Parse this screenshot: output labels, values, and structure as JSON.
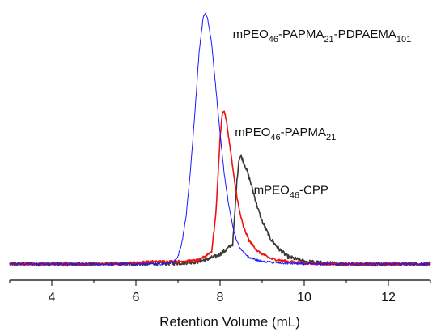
{
  "chart_data": {
    "type": "line",
    "xlabel": "Retention Volume (mL)",
    "ylabel": "",
    "xlim": [
      3,
      13
    ],
    "ylim": [
      0,
      1.02
    ],
    "x_ticks": [
      4,
      6,
      8,
      10,
      12
    ],
    "x_tick_labels": [
      "4",
      "6",
      "8",
      "10",
      "12"
    ],
    "y_axis_visible": false,
    "grid": false,
    "legend": "none",
    "series": [
      {
        "color": "#1a1aff",
        "noise": 0.004,
        "points": [
          [
            3.0,
            0.0
          ],
          [
            6.6,
            0.0
          ],
          [
            6.9,
            0.008
          ],
          [
            7.0,
            0.03
          ],
          [
            7.1,
            0.09
          ],
          [
            7.2,
            0.2
          ],
          [
            7.3,
            0.38
          ],
          [
            7.4,
            0.6
          ],
          [
            7.5,
            0.84
          ],
          [
            7.6,
            0.985
          ],
          [
            7.65,
            1.0
          ],
          [
            7.7,
            0.98
          ],
          [
            7.8,
            0.88
          ],
          [
            7.9,
            0.7
          ],
          [
            8.0,
            0.52
          ],
          [
            8.1,
            0.36
          ],
          [
            8.2,
            0.24
          ],
          [
            8.3,
            0.15
          ],
          [
            8.4,
            0.09
          ],
          [
            8.5,
            0.055
          ],
          [
            8.7,
            0.025
          ],
          [
            9.0,
            0.01
          ],
          [
            9.5,
            0.003
          ],
          [
            10.0,
            0.0
          ],
          [
            13.0,
            0.0
          ]
        ]
      },
      {
        "color": "#ee1111",
        "noise": 0.005,
        "points": [
          [
            3.0,
            0.0
          ],
          [
            5.5,
            0.0
          ],
          [
            6.0,
            0.006
          ],
          [
            6.5,
            0.01
          ],
          [
            7.0,
            0.01
          ],
          [
            7.5,
            0.015
          ],
          [
            7.8,
            0.05
          ],
          [
            7.9,
            0.2
          ],
          [
            8.0,
            0.5
          ],
          [
            8.05,
            0.6
          ],
          [
            8.1,
            0.61
          ],
          [
            8.15,
            0.57
          ],
          [
            8.25,
            0.45
          ],
          [
            8.35,
            0.32
          ],
          [
            8.45,
            0.22
          ],
          [
            8.55,
            0.15
          ],
          [
            8.7,
            0.09
          ],
          [
            8.9,
            0.05
          ],
          [
            9.2,
            0.022
          ],
          [
            9.6,
            0.01
          ],
          [
            10.0,
            0.004
          ],
          [
            10.5,
            0.0
          ],
          [
            13.0,
            0.0
          ]
        ]
      },
      {
        "color": "#3a3a3a",
        "noise": 0.008,
        "points": [
          [
            3.0,
            0.0
          ],
          [
            6.0,
            0.0
          ],
          [
            7.0,
            0.004
          ],
          [
            7.5,
            0.01
          ],
          [
            7.9,
            0.03
          ],
          [
            8.1,
            0.05
          ],
          [
            8.3,
            0.08
          ],
          [
            8.35,
            0.2
          ],
          [
            8.4,
            0.33
          ],
          [
            8.45,
            0.42
          ],
          [
            8.5,
            0.43
          ],
          [
            8.6,
            0.39
          ],
          [
            8.7,
            0.34
          ],
          [
            8.8,
            0.28
          ],
          [
            8.9,
            0.22
          ],
          [
            9.0,
            0.17
          ],
          [
            9.2,
            0.1
          ],
          [
            9.4,
            0.06
          ],
          [
            9.6,
            0.03
          ],
          [
            10.0,
            0.01
          ],
          [
            10.5,
            0.003
          ],
          [
            11.0,
            0.0
          ],
          [
            13.0,
            0.0
          ]
        ]
      }
    ],
    "annotations": [
      {
        "parts": [
          {
            "t": "mPEO"
          },
          {
            "t": "46",
            "sub": true
          },
          {
            "t": "-PAPMA"
          },
          {
            "t": "21",
            "sub": true
          },
          {
            "t": "-PDPAEMA"
          },
          {
            "t": "101",
            "sub": true
          }
        ],
        "at": [
          8.3,
          0.9
        ],
        "color": "#111111"
      },
      {
        "parts": [
          {
            "t": "mPEO"
          },
          {
            "t": "46",
            "sub": true
          },
          {
            "t": "-PAPMA"
          },
          {
            "t": "21",
            "sub": true
          }
        ],
        "at": [
          8.35,
          0.51
        ],
        "color": "#111111"
      },
      {
        "parts": [
          {
            "t": "mPEO"
          },
          {
            "t": "46",
            "sub": true
          },
          {
            "t": "-CPP"
          }
        ],
        "at": [
          8.8,
          0.28
        ],
        "color": "#111111"
      }
    ]
  }
}
